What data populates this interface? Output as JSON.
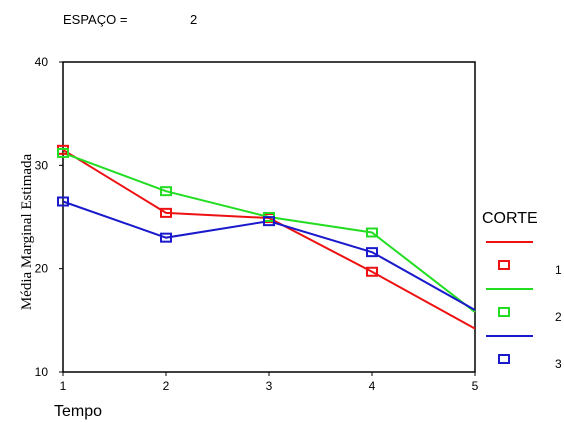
{
  "header": {
    "label": "ESPAÇO =",
    "value": "2"
  },
  "chart_data": {
    "type": "line",
    "title": "",
    "xlabel": "Tempo",
    "ylabel": "Média Marginal Estimada",
    "x": [
      1,
      2,
      3,
      4,
      5
    ],
    "xlim": [
      1,
      5
    ],
    "ylim": [
      10,
      40
    ],
    "yticks": [
      10,
      20,
      30,
      40
    ],
    "grid": false,
    "legend": {
      "title": "CORTE",
      "placement": "right"
    },
    "series": [
      {
        "name": "1",
        "color": "#ee1111",
        "values": [
          31.5,
          25.4,
          24.9,
          19.7,
          14.2
        ]
      },
      {
        "name": "2",
        "color": "#22dd22",
        "values": [
          31.2,
          27.5,
          25.0,
          23.5,
          15.8
        ]
      },
      {
        "name": "3",
        "color": "#1a1acc",
        "values": [
          26.5,
          23.0,
          24.6,
          21.6,
          16.0
        ]
      }
    ]
  }
}
